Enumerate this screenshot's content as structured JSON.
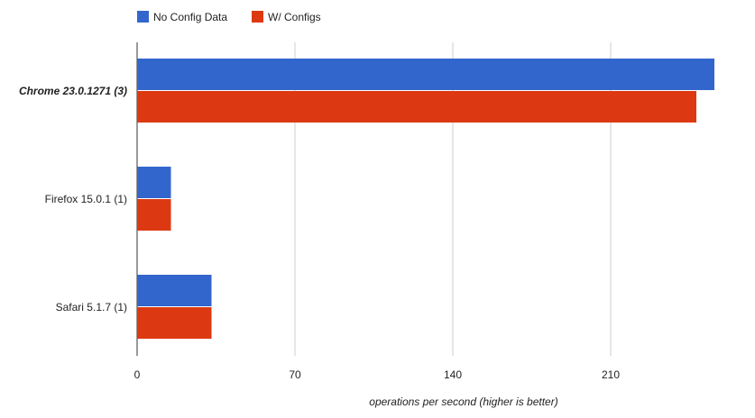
{
  "chart_data": {
    "type": "bar",
    "orientation": "horizontal",
    "title": "",
    "categories": [
      "Chrome 23.0.1271 (3)",
      "Firefox 15.0.1 (1)",
      "Safari 5.1.7 (1)"
    ],
    "highlighted_category": "Chrome 23.0.1271 (3)",
    "series": [
      {
        "name": "No Config Data",
        "color": "#3366cc",
        "values": [
          256,
          15,
          33
        ]
      },
      {
        "name": "W/ Configs",
        "color": "#dc3912",
        "values": [
          248,
          15,
          33
        ]
      }
    ],
    "xlabel": "operations per second (higher is better)",
    "ylabel": "",
    "xlim": [
      0,
      256
    ],
    "xticks": [
      0,
      70,
      140,
      210
    ],
    "xtick_labels": [
      "0",
      "70",
      "140",
      "210"
    ],
    "grid": true,
    "legend_position": "top-left"
  }
}
